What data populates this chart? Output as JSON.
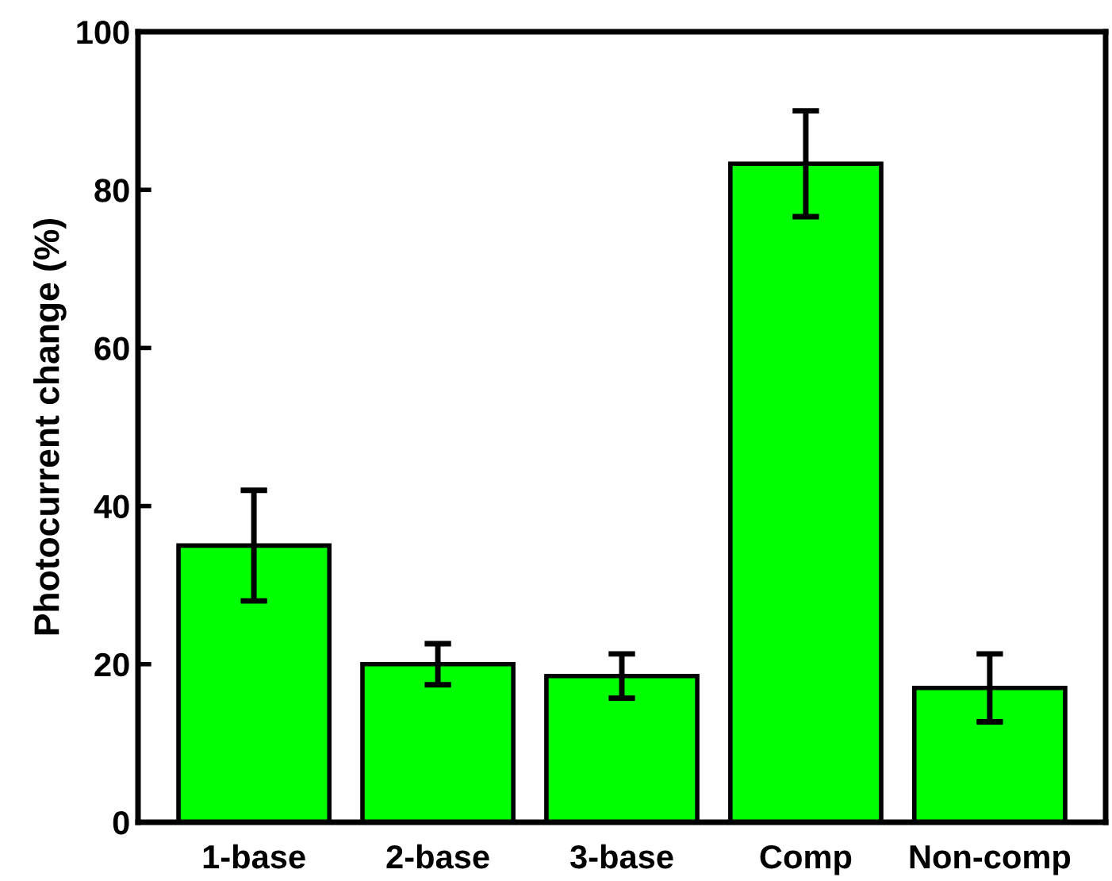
{
  "chart_data": {
    "type": "bar",
    "ylabel": "Photocurrent change (%)",
    "categories": [
      "1-base",
      "2-base",
      "3-base",
      "Comp",
      "Non-comp"
    ],
    "values": [
      35,
      20,
      18.5,
      83.3,
      17
    ],
    "errors": [
      7,
      2.6,
      2.8,
      6.7,
      4.3
    ],
    "color": "#00ff00",
    "ylim": [
      0,
      100
    ],
    "yticks": [
      0,
      20,
      40,
      60,
      80,
      100
    ],
    "grid": false
  }
}
